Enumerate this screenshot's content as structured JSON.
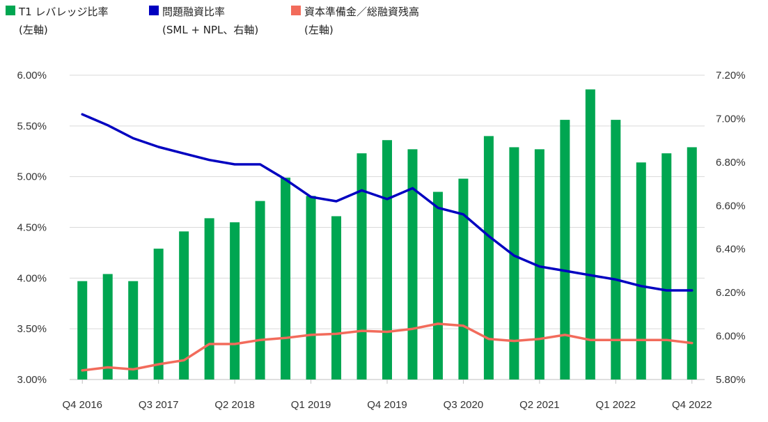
{
  "legend": [
    {
      "line1": "T1 レバレッジ比率",
      "line2": "(左軸)",
      "color": "#00a651",
      "icon": "square-swatch"
    },
    {
      "line1": "問題融資比率",
      "line2": "(SML + NPL、右軸)",
      "color": "#0000c0",
      "icon": "square-swatch"
    },
    {
      "line1": "資本準備金／総融資残高",
      "line2": "(左軸)",
      "color": "#f26b5b",
      "icon": "square-swatch"
    }
  ],
  "chart_data": {
    "type": "bar",
    "categories": [
      "Q4 2016",
      "Q1 2017",
      "Q2 2017",
      "Q3 2017",
      "Q4 2017",
      "Q1 2018",
      "Q2 2018",
      "Q3 2018",
      "Q4 2018",
      "Q1 2019",
      "Q2 2019",
      "Q3 2019",
      "Q4 2019",
      "Q1 2020",
      "Q2 2020",
      "Q3 2020",
      "Q4 2020",
      "Q1 2021",
      "Q2 2021",
      "Q3 2021",
      "Q4 2021",
      "Q1 2022",
      "Q2 2022",
      "Q3 2022",
      "Q4 2022"
    ],
    "x_tick_labels": [
      "Q4 2016",
      "Q3 2017",
      "Q2 2018",
      "Q1 2019",
      "Q4 2019",
      "Q3 2020",
      "Q2 2021",
      "Q1 2022",
      "Q4 2022"
    ],
    "x_tick_indices": [
      0,
      3,
      6,
      9,
      12,
      15,
      18,
      21,
      24
    ],
    "series": [
      {
        "name": "T1 レバレッジ比率",
        "axis": "left",
        "kind": "bar",
        "color": "#00a651",
        "values": [
          3.97,
          4.04,
          3.97,
          4.29,
          4.46,
          4.59,
          4.55,
          4.76,
          4.99,
          4.81,
          4.61,
          5.23,
          5.36,
          5.27,
          4.85,
          4.98,
          5.4,
          5.29,
          5.27,
          5.56,
          5.86,
          5.56,
          5.14,
          5.23,
          5.29
        ]
      },
      {
        "name": "問題融資比率",
        "axis": "right",
        "kind": "line",
        "color": "#0000c0",
        "values": [
          7.02,
          6.97,
          6.91,
          6.87,
          6.84,
          6.81,
          6.79,
          6.79,
          6.72,
          6.64,
          6.62,
          6.67,
          6.63,
          6.68,
          6.59,
          6.56,
          6.46,
          6.37,
          6.32,
          6.3,
          6.28,
          6.26,
          6.23,
          6.21,
          6.21
        ]
      },
      {
        "name": "資本準備金／総融資残高",
        "axis": "left",
        "kind": "line",
        "color": "#f26b5b",
        "values": [
          3.09,
          3.12,
          3.1,
          3.15,
          3.19,
          3.35,
          3.35,
          3.39,
          3.41,
          3.44,
          3.45,
          3.48,
          3.47,
          3.5,
          3.55,
          3.53,
          3.4,
          3.38,
          3.4,
          3.44,
          3.39,
          3.39,
          3.39,
          3.39,
          3.36
        ]
      }
    ],
    "left_axis": {
      "ylim": [
        3.0,
        6.0
      ],
      "ticks": [
        3.0,
        3.5,
        4.0,
        4.5,
        5.0,
        5.5,
        6.0
      ],
      "tick_labels": [
        "3.00%",
        "3.50%",
        "4.00%",
        "4.50%",
        "5.00%",
        "5.50%",
        "6.00%"
      ]
    },
    "right_axis": {
      "ylim": [
        5.8,
        7.2
      ],
      "ticks": [
        5.8,
        6.0,
        6.2,
        6.4,
        6.6,
        6.8,
        7.0,
        7.2
      ],
      "tick_labels": [
        "5.80%",
        "6.00%",
        "6.20%",
        "6.40%",
        "6.60%",
        "6.80%",
        "7.00%",
        "7.20%"
      ]
    },
    "grid": true,
    "legend_position": "top-left"
  }
}
